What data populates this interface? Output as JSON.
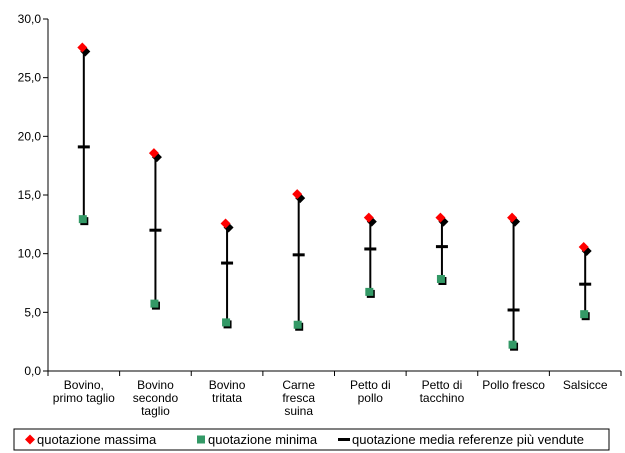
{
  "chart_data": {
    "type": "scatter",
    "title": "",
    "xlabel": "",
    "ylabel": "",
    "ylim": [
      0,
      30
    ],
    "yticks": [
      0,
      5,
      10,
      15,
      20,
      25,
      30
    ],
    "ytick_labels": [
      "0,0",
      "5,0",
      "10,0",
      "15,0",
      "20,0",
      "25,0",
      "30,0"
    ],
    "grid": false,
    "legend_position": "bottom",
    "categories": [
      [
        "Bovino,",
        "primo taglio"
      ],
      [
        "Bovino",
        "secondo",
        "taglio"
      ],
      [
        "Bovino",
        "tritata"
      ],
      [
        "Carne",
        "fresca",
        "suina"
      ],
      [
        "Petto di",
        "pollo"
      ],
      [
        "Petto di",
        "tacchino"
      ],
      [
        "Pollo fresco"
      ],
      [
        "Salsicce"
      ]
    ],
    "series": [
      {
        "name": "quotazione massima",
        "marker": "diamond",
        "color": "#ff0000",
        "shadow_color": "#000000",
        "values": [
          27.4,
          18.4,
          12.4,
          14.9,
          12.9,
          12.9,
          12.9,
          10.4
        ]
      },
      {
        "name": "quotazione minima",
        "marker": "square",
        "color": "#339966",
        "shadow_color": "#000000",
        "values": [
          12.9,
          5.7,
          4.1,
          3.9,
          6.7,
          7.8,
          2.2,
          4.8
        ]
      },
      {
        "name": "quotazione media referenze più vendute",
        "marker": "dash",
        "color": "#000000",
        "values": [
          19.1,
          12.0,
          9.2,
          9.9,
          10.4,
          10.6,
          5.2,
          7.4
        ]
      }
    ],
    "line_color": "#000000"
  },
  "legend": {
    "items": [
      {
        "label": "quotazione massima",
        "marker": "diamond",
        "color": "#ff0000"
      },
      {
        "label": "quotazione minima",
        "marker": "square",
        "color": "#339966"
      },
      {
        "label": "quotazione media referenze più vendute",
        "marker": "dash",
        "color": "#000000"
      }
    ]
  }
}
